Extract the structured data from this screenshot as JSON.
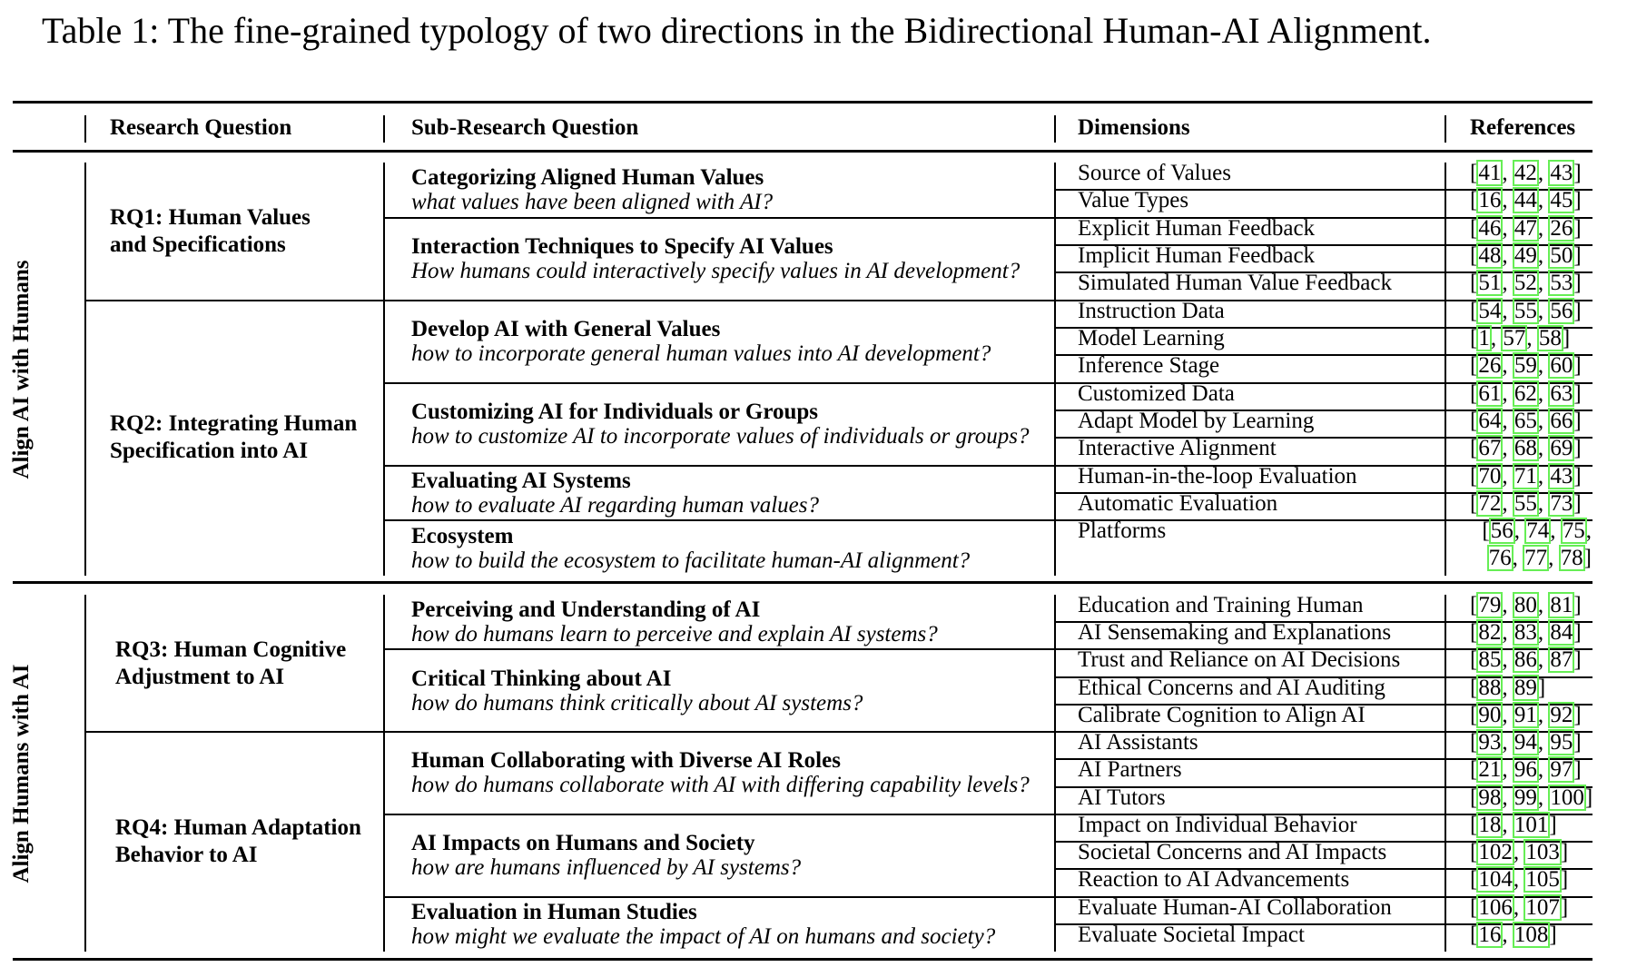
{
  "caption": "Table 1: The fine-grained typology of two directions in the Bidirectional Human-AI Alignment.",
  "headers": {
    "research_question": "Research Question",
    "sub_research_question": "Sub-Research Question",
    "dimensions": "Dimensions",
    "references": "References"
  },
  "colors": {
    "citation_box": "#66ee55",
    "text": "#000000"
  },
  "sections": [
    {
      "label": "Align AI with Humans",
      "rqs": [
        {
          "lines": [
            "RQ1: Human Values",
            "and Specifications"
          ],
          "subs": [
            {
              "title": "Categorizing Aligned Human Values",
              "question": "what values have been aligned with AI?",
              "dims": [
                {
                  "name": "Source of Values",
                  "refs": [
                    "41",
                    "42",
                    "43"
                  ]
                },
                {
                  "name": "Value Types",
                  "refs": [
                    "16",
                    "44",
                    "45"
                  ]
                }
              ]
            },
            {
              "title": "Interaction Techniques to Specify AI Values",
              "question": "How humans could interactively specify values in AI development?",
              "dims": [
                {
                  "name": "Explicit Human Feedback",
                  "refs": [
                    "46",
                    "47",
                    "26"
                  ]
                },
                {
                  "name": "Implicit Human Feedback",
                  "refs": [
                    "48",
                    "49",
                    "50"
                  ]
                },
                {
                  "name": "Simulated Human Value Feedback",
                  "refs": [
                    "51",
                    "52",
                    "53"
                  ]
                }
              ]
            }
          ]
        },
        {
          "lines": [
            "RQ2: Integrating Human",
            "Specification into AI"
          ],
          "subs": [
            {
              "title": "Develop AI with General Values",
              "question": "how to incorporate general human values into AI development?",
              "dims": [
                {
                  "name": "Instruction Data",
                  "refs": [
                    "54",
                    "55",
                    "56"
                  ]
                },
                {
                  "name": "Model Learning",
                  "refs": [
                    "1",
                    "57",
                    "58"
                  ]
                },
                {
                  "name": "Inference Stage",
                  "refs": [
                    "26",
                    "59",
                    "60"
                  ]
                }
              ]
            },
            {
              "title": "Customizing AI for Individuals or Groups",
              "question": "how to customize AI to incorporate values of individuals or groups?",
              "dims": [
                {
                  "name": "Customized Data",
                  "refs": [
                    "61",
                    "62",
                    "63"
                  ]
                },
                {
                  "name": "Adapt Model by Learning",
                  "refs": [
                    "64",
                    "65",
                    "66"
                  ]
                },
                {
                  "name": "Interactive Alignment",
                  "refs": [
                    "67",
                    "68",
                    "69"
                  ]
                }
              ]
            },
            {
              "title": "Evaluating AI Systems",
              "question": "how to evaluate AI regarding human values?",
              "dims": [
                {
                  "name": "Human-in-the-loop Evaluation",
                  "refs": [
                    "70",
                    "71",
                    "43"
                  ]
                },
                {
                  "name": "Automatic Evaluation",
                  "refs": [
                    "72",
                    "55",
                    "73"
                  ]
                }
              ]
            },
            {
              "title": "Ecosystem",
              "question": "how to build the ecosystem to facilitate human-AI alignment?",
              "dims": [
                {
                  "name": "Platforms",
                  "refs": [
                    "56",
                    "74",
                    "75",
                    "76",
                    "77",
                    "78"
                  ]
                }
              ]
            }
          ]
        }
      ]
    },
    {
      "label": "Align Humans with AI",
      "rqs": [
        {
          "lines": [
            "RQ3: Human Cognitive",
            "Adjustment to AI"
          ],
          "subs": [
            {
              "title": "Perceiving and Understanding of AI",
              "question": "how do humans learn to perceive and explain AI systems?",
              "dims": [
                {
                  "name": "Education and Training Human",
                  "refs": [
                    "79",
                    "80",
                    "81"
                  ]
                },
                {
                  "name": "AI Sensemaking and Explanations",
                  "refs": [
                    "82",
                    "83",
                    "84"
                  ]
                }
              ]
            },
            {
              "title": "Critical Thinking about AI",
              "question": "how do humans think critically about AI systems?",
              "dims": [
                {
                  "name": "Trust and Reliance on AI Decisions",
                  "refs": [
                    "85",
                    "86",
                    "87"
                  ]
                },
                {
                  "name": "Ethical Concerns and AI Auditing",
                  "refs": [
                    "88",
                    "89"
                  ]
                },
                {
                  "name": "Calibrate Cognition to Align AI",
                  "refs": [
                    "90",
                    "91",
                    "92"
                  ]
                }
              ]
            }
          ]
        },
        {
          "lines": [
            "RQ4: Human Adaptation",
            "Behavior to AI"
          ],
          "subs": [
            {
              "title": "Human Collaborating with Diverse AI Roles",
              "question": "how do humans collaborate with AI with differing capability levels?",
              "dims": [
                {
                  "name": "AI Assistants",
                  "refs": [
                    "93",
                    "94",
                    "95"
                  ]
                },
                {
                  "name": "AI Partners",
                  "refs": [
                    "21",
                    "96",
                    "97"
                  ]
                },
                {
                  "name": "AI Tutors",
                  "refs": [
                    "98",
                    "99",
                    "100"
                  ]
                }
              ]
            },
            {
              "title": "AI Impacts on Humans and Society",
              "question": "how are humans influenced by AI systems?",
              "dims": [
                {
                  "name": "Impact on Individual Behavior",
                  "refs": [
                    "18",
                    "101"
                  ]
                },
                {
                  "name": "Societal Concerns and AI Impacts",
                  "refs": [
                    "102",
                    "103"
                  ]
                },
                {
                  "name": "Reaction to AI Advancements",
                  "refs": [
                    "104",
                    "105"
                  ]
                }
              ]
            },
            {
              "title": "Evaluation in Human Studies",
              "question": "how might we evaluate the impact of AI on humans and society?",
              "dims": [
                {
                  "name": "Evaluate Human-AI Collaboration",
                  "refs": [
                    "106",
                    "107"
                  ]
                },
                {
                  "name": "Evaluate Societal Impact",
                  "refs": [
                    "16",
                    "108"
                  ]
                }
              ]
            }
          ]
        }
      ]
    }
  ]
}
